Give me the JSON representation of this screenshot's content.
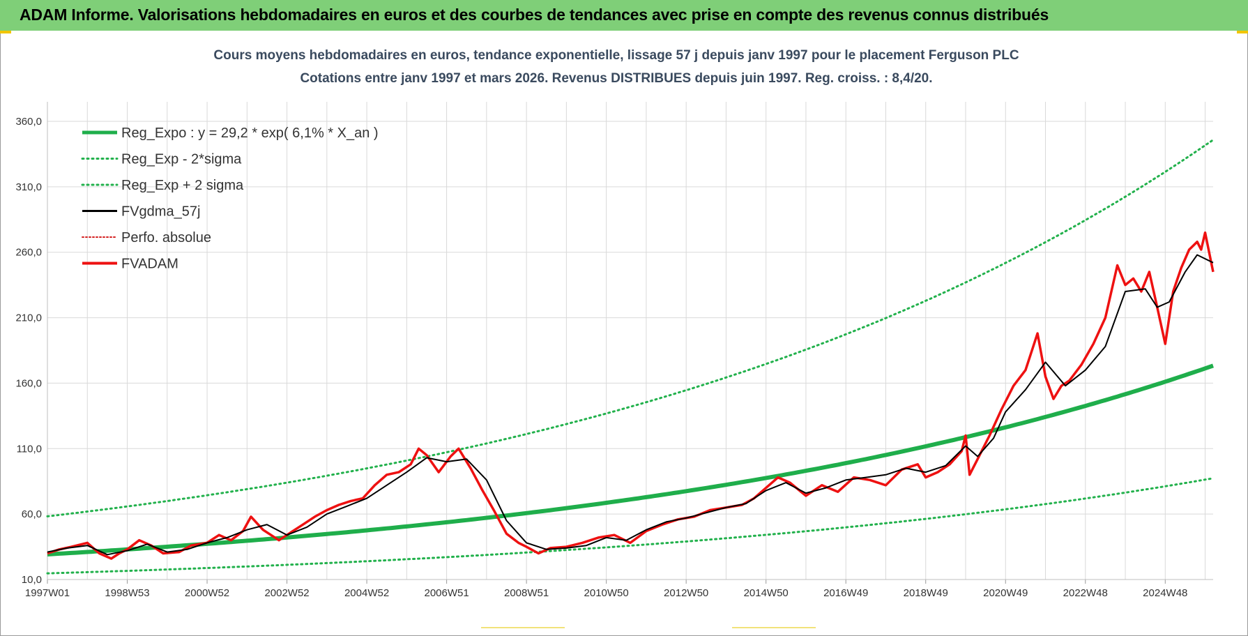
{
  "report": {
    "banner_title": "ADAM Informe. Valorisations hebdomadaires en euros et des courbes de tendances avec prise en compte des revenus connus distribués"
  },
  "colors": {
    "banner": "#7fcf78",
    "reg_expo": "#1fae4b",
    "sigma": "#22b14c",
    "fvgdma": "#000000",
    "perfo": "#d42020",
    "fvadam": "#ee1111",
    "grid": "#d9d9d9"
  },
  "chart_data": {
    "type": "line",
    "title": "Cours moyens hebdomadaires en euros, tendance exponentielle, lissage 57 j depuis janv 1997 pour le placement Ferguson PLC",
    "subtitle": "Cotations entre janv 1997 et mars 2026. Revenus DISTRIBUES depuis juin 1997. Reg.  croiss. : 8,4/20.",
    "x_range_years": [
      1997.0,
      2026.2
    ],
    "ylim": [
      10,
      385
    ],
    "y_ticks": [
      {
        "value": 10,
        "label": "10,0"
      },
      {
        "value": 60,
        "label": "60,0"
      },
      {
        "value": 110,
        "label": "110,0"
      },
      {
        "value": 160,
        "label": "160,0"
      },
      {
        "value": 210,
        "label": "210,0"
      },
      {
        "value": 260,
        "label": "260,0"
      },
      {
        "value": 310,
        "label": "310,0"
      },
      {
        "value": 360,
        "label": "360,0"
      }
    ],
    "x_ticks": [
      {
        "year": 1997.0,
        "label": "1997W01"
      },
      {
        "year": 1999.0,
        "label": "1998W53"
      },
      {
        "year": 2001.0,
        "label": "2000W52"
      },
      {
        "year": 2003.0,
        "label": "2002W52"
      },
      {
        "year": 2005.0,
        "label": "2004W52"
      },
      {
        "year": 2007.0,
        "label": "2006W51"
      },
      {
        "year": 2009.0,
        "label": "2008W51"
      },
      {
        "year": 2011.0,
        "label": "2010W50"
      },
      {
        "year": 2013.0,
        "label": "2012W50"
      },
      {
        "year": 2015.0,
        "label": "2014W50"
      },
      {
        "year": 2017.0,
        "label": "2016W49"
      },
      {
        "year": 2019.0,
        "label": "2018W49"
      },
      {
        "year": 2021.0,
        "label": "2020W49"
      },
      {
        "year": 2023.0,
        "label": "2022W48"
      },
      {
        "year": 2025.0,
        "label": "2024W48"
      }
    ],
    "grid": true,
    "legend_position": "top-left",
    "legend": [
      {
        "key": "reg_expo",
        "label": "Reg_Expo : y = 29,2 * exp( 6,1% *  X_an )"
      },
      {
        "key": "reg_minus",
        "label": "Reg_Exp - 2*sigma"
      },
      {
        "key": "reg_plus",
        "label": "Reg_Exp + 2 sigma"
      },
      {
        "key": "fvgdma",
        "label": "FVgdma_57j"
      },
      {
        "key": "perfo",
        "label": "Perfo. absolue"
      },
      {
        "key": "fvadam",
        "label": "FVADAM"
      }
    ],
    "regression": {
      "base": 29.2,
      "rate": 0.061,
      "minus_factor": 0.504,
      "plus_factor": 1.995
    },
    "series": [
      {
        "name": "FVADAM",
        "x": [
          1997.0,
          1997.3,
          1997.6,
          1998.0,
          1998.3,
          1998.6,
          1998.8,
          1999.0,
          1999.3,
          1999.6,
          1999.9,
          2000.3,
          2000.6,
          2001.0,
          2001.3,
          2001.6,
          2001.9,
          2002.1,
          2002.4,
          2002.6,
          2002.8,
          2003.1,
          2003.4,
          2003.7,
          2004.0,
          2004.3,
          2004.6,
          2004.9,
          2005.2,
          2005.5,
          2005.8,
          2006.1,
          2006.3,
          2006.5,
          2006.8,
          2007.1,
          2007.3,
          2007.6,
          2007.9,
          2008.2,
          2008.5,
          2008.8,
          2009.0,
          2009.3,
          2009.6,
          2010.0,
          2010.4,
          2010.8,
          2011.2,
          2011.6,
          2012.0,
          2012.4,
          2012.8,
          2013.2,
          2013.6,
          2014.0,
          2014.4,
          2014.7,
          2015.0,
          2015.3,
          2015.6,
          2016.0,
          2016.4,
          2016.8,
          2017.2,
          2017.6,
          2018.0,
          2018.4,
          2018.8,
          2019.0,
          2019.3,
          2019.6,
          2019.9,
          2020.0,
          2020.1,
          2020.3,
          2020.6,
          2020.9,
          2021.2,
          2021.5,
          2021.8,
          2022.0,
          2022.2,
          2022.4,
          2022.6,
          2022.9,
          2023.2,
          2023.5,
          2023.8,
          2024.0,
          2024.2,
          2024.4,
          2024.6,
          2024.8,
          2025.0,
          2025.2,
          2025.4,
          2025.6,
          2025.8,
          2025.9,
          2026.0,
          2026.2
        ],
        "values": [
          30,
          33,
          35,
          38,
          30,
          26,
          30,
          33,
          40,
          36,
          30,
          31,
          36,
          38,
          44,
          40,
          47,
          58,
          48,
          44,
          40,
          46,
          52,
          58,
          63,
          67,
          70,
          72,
          82,
          90,
          92,
          98,
          110,
          105,
          92,
          104,
          110,
          95,
          78,
          62,
          45,
          38,
          35,
          30,
          34,
          35,
          38,
          42,
          44,
          38,
          47,
          52,
          56,
          58,
          63,
          65,
          67,
          72,
          80,
          88,
          84,
          74,
          82,
          77,
          88,
          86,
          82,
          94,
          98,
          88,
          92,
          98,
          108,
          120,
          90,
          102,
          120,
          140,
          158,
          170,
          198,
          165,
          148,
          158,
          162,
          174,
          190,
          210,
          250,
          235,
          240,
          230,
          245,
          218,
          190,
          230,
          248,
          262,
          268,
          262,
          275,
          245
        ]
      },
      {
        "name": "FVgdma_57j",
        "x": [
          1997.0,
          1997.5,
          1998.0,
          1998.5,
          1999.0,
          1999.5,
          2000.0,
          2000.5,
          2001.0,
          2001.5,
          2002.0,
          2002.5,
          2003.0,
          2003.5,
          2004.0,
          2004.5,
          2005.0,
          2005.5,
          2006.0,
          2006.5,
          2007.0,
          2007.5,
          2008.0,
          2008.5,
          2009.0,
          2009.5,
          2010.0,
          2010.5,
          2011.0,
          2011.5,
          2012.0,
          2012.5,
          2013.0,
          2013.5,
          2014.0,
          2014.5,
          2015.0,
          2015.5,
          2016.0,
          2016.5,
          2017.0,
          2017.5,
          2018.0,
          2018.5,
          2019.0,
          2019.5,
          2020.0,
          2020.3,
          2020.7,
          2021.0,
          2021.5,
          2022.0,
          2022.5,
          2023.0,
          2023.5,
          2024.0,
          2024.5,
          2024.8,
          2025.1,
          2025.5,
          2025.8,
          2026.2
        ],
        "values": [
          31,
          34,
          36,
          29,
          32,
          37,
          31,
          33,
          38,
          42,
          48,
          52,
          44,
          50,
          60,
          66,
          72,
          82,
          92,
          103,
          100,
          102,
          86,
          55,
          38,
          33,
          34,
          36,
          42,
          40,
          48,
          54,
          57,
          61,
          65,
          68,
          78,
          84,
          76,
          80,
          86,
          88,
          90,
          95,
          92,
          97,
          112,
          104,
          118,
          138,
          155,
          176,
          158,
          170,
          188,
          230,
          232,
          218,
          222,
          245,
          258,
          252
        ]
      }
    ]
  }
}
